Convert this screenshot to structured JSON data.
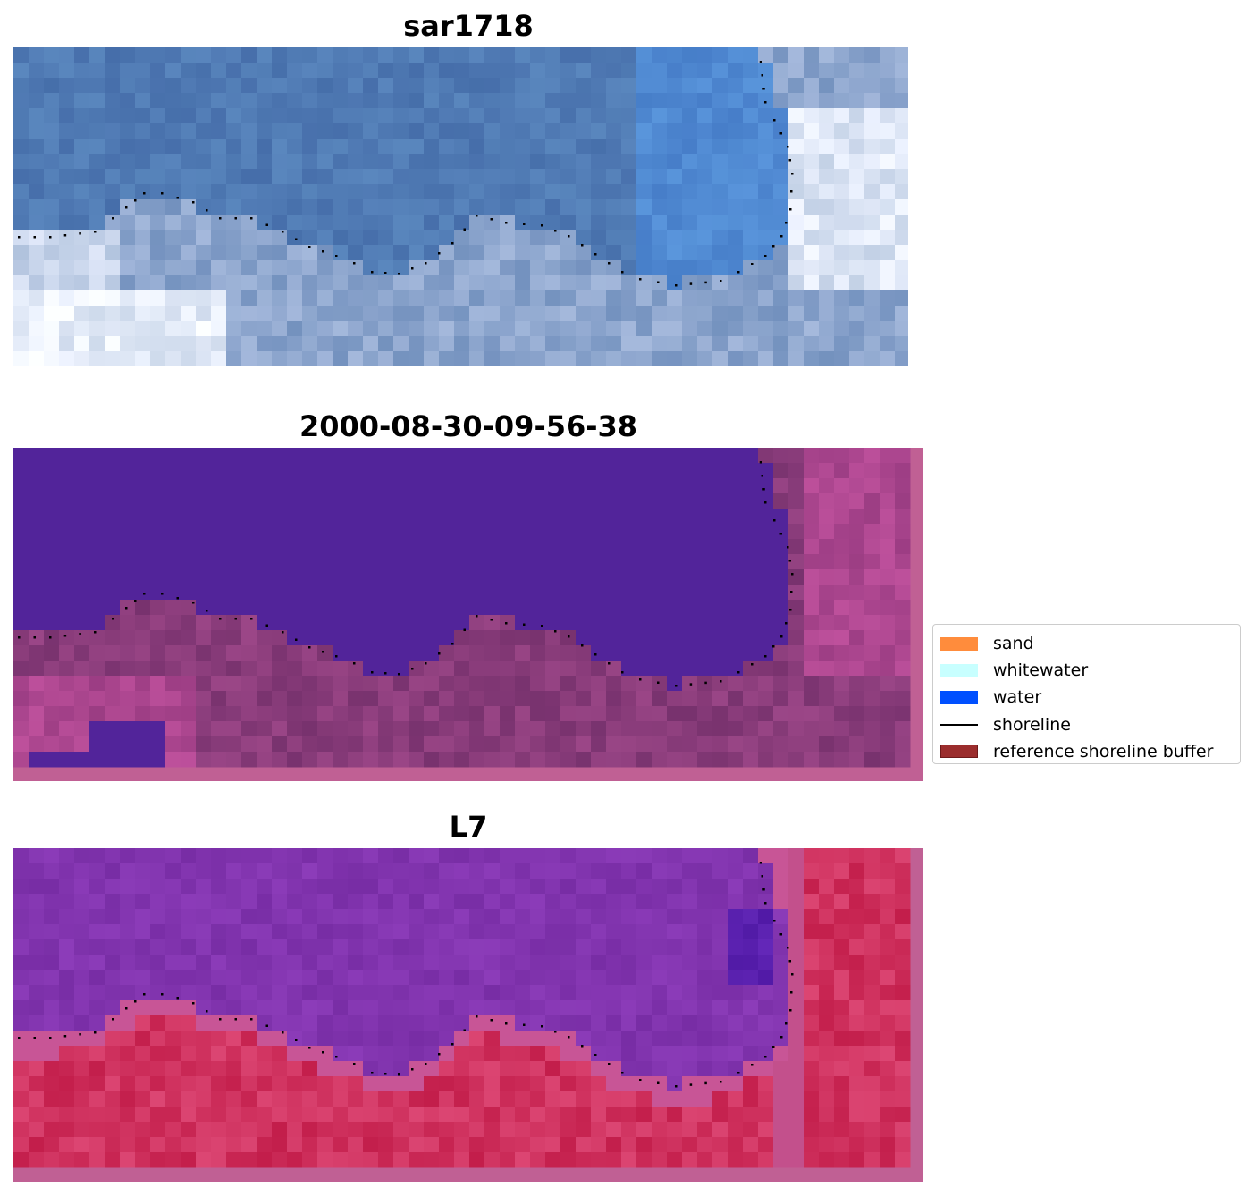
{
  "panels": [
    {
      "title": "sar1718",
      "kind": "rgb"
    },
    {
      "title": "2000-08-30-09-56-38",
      "kind": "classified"
    },
    {
      "title": "L7",
      "kind": "index"
    }
  ],
  "legend": {
    "items": [
      {
        "label": "sand",
        "color": "#ff8c3c",
        "type": "patch"
      },
      {
        "label": "whitewater",
        "color": "#c8ffff",
        "type": "patch"
      },
      {
        "label": "water",
        "color": "#0050ff",
        "type": "patch"
      },
      {
        "label": "shoreline",
        "color": "#000000",
        "type": "line"
      },
      {
        "label": "reference shoreline buffer",
        "color": "#9b2d2d",
        "type": "patch"
      }
    ]
  },
  "colors": {
    "rgb_water": "#4a78b0",
    "rgb_land": "#8aa6c8",
    "classified_water": "#52249a",
    "classified_land": "#8a3f80",
    "buffer_frame": "#c06094",
    "index_water": "#7c2ea0",
    "index_land": "#c8285a",
    "shoreline_dots": "#000000"
  }
}
